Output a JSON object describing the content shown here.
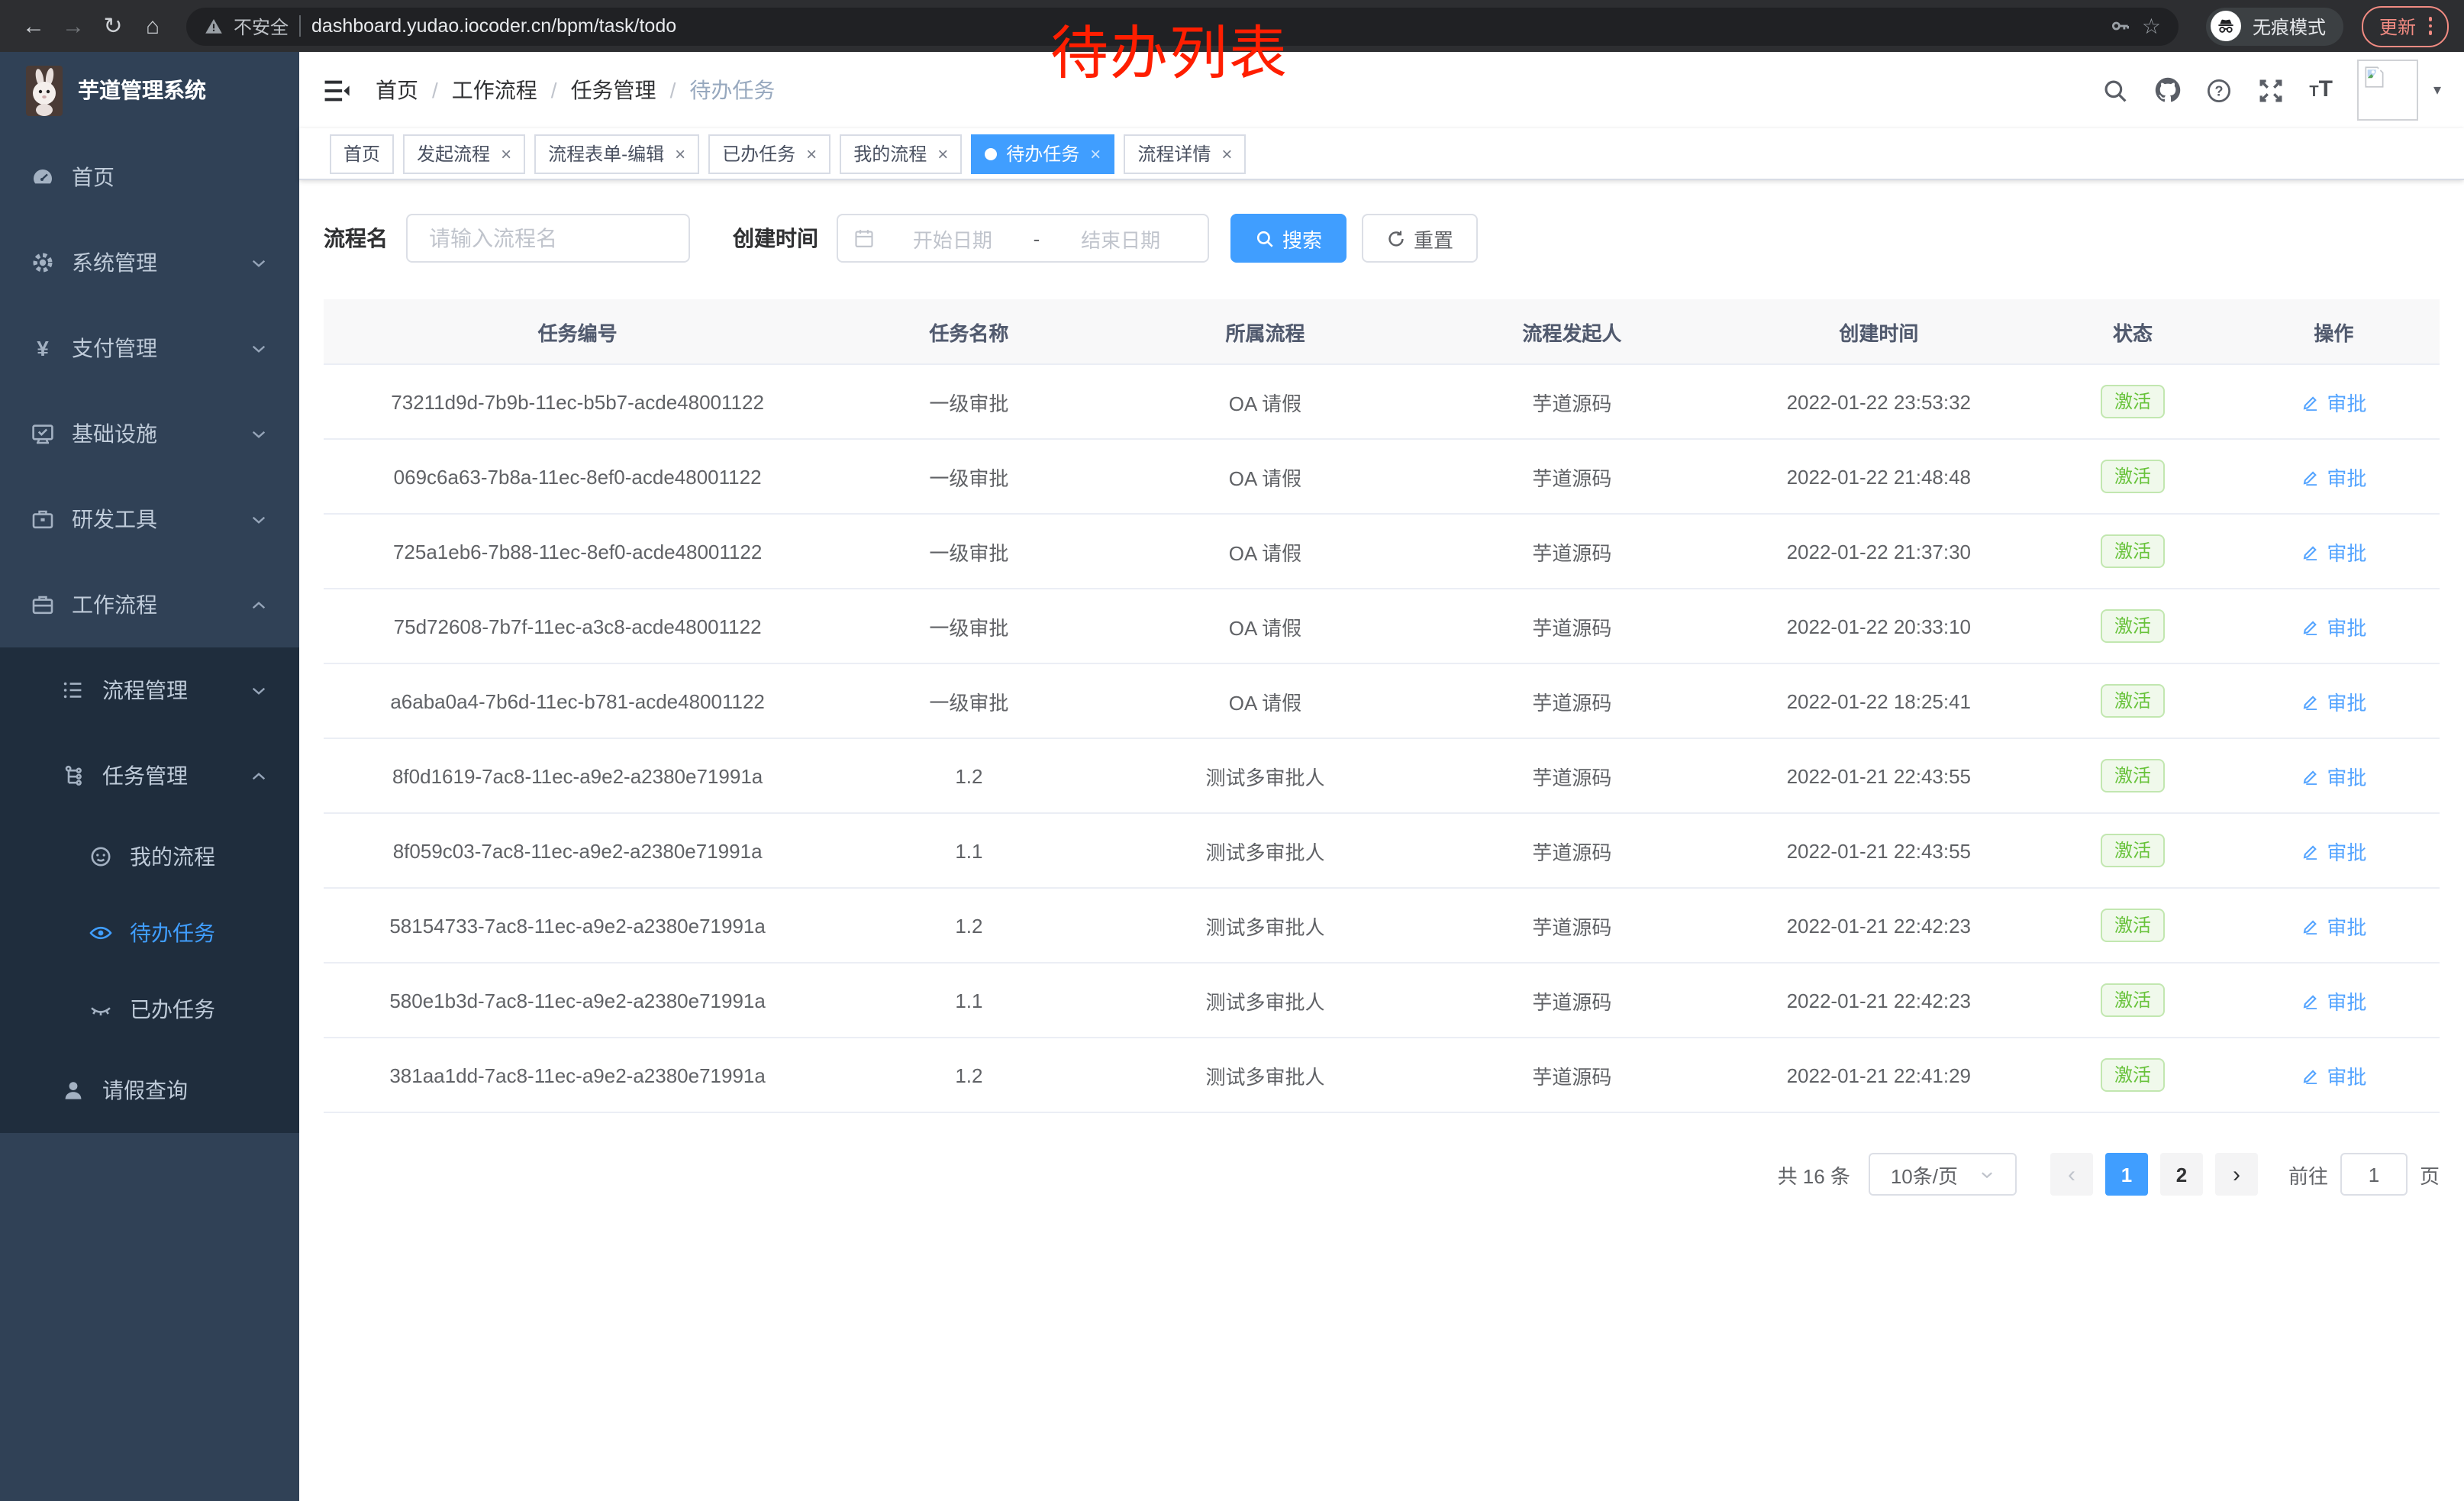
{
  "browser": {
    "security_label": "不安全",
    "url": "dashboard.yudao.iocoder.cn/bpm/task/todo",
    "incognito_label": "无痕模式",
    "update_label": "更新"
  },
  "annotation": "待办列表",
  "sidebar": {
    "app_title": "芋道管理系统",
    "items": [
      {
        "label": "首页",
        "icon": "dashboard-icon",
        "level": 1,
        "chevron": "",
        "dark": false,
        "active": false
      },
      {
        "label": "系统管理",
        "icon": "gear-icon",
        "level": 1,
        "chevron": "down",
        "dark": false,
        "active": false
      },
      {
        "label": "支付管理",
        "icon": "yen-icon",
        "level": 1,
        "chevron": "down",
        "dark": false,
        "active": false
      },
      {
        "label": "基础设施",
        "icon": "monitor-icon",
        "level": 1,
        "chevron": "down",
        "dark": false,
        "active": false
      },
      {
        "label": "研发工具",
        "icon": "toolbox-icon",
        "level": 1,
        "chevron": "down",
        "dark": false,
        "active": false
      },
      {
        "label": "工作流程",
        "icon": "briefcase-icon",
        "level": 1,
        "chevron": "up",
        "dark": false,
        "active": false
      },
      {
        "label": "流程管理",
        "icon": "list-icon",
        "level": 2,
        "chevron": "down",
        "dark": true,
        "active": false
      },
      {
        "label": "任务管理",
        "icon": "tree-icon",
        "level": 2,
        "chevron": "up",
        "dark": true,
        "active": false
      },
      {
        "label": "我的流程",
        "icon": "face-icon",
        "level": 3,
        "chevron": "",
        "dark": true,
        "active": false
      },
      {
        "label": "待办任务",
        "icon": "eye-icon",
        "level": 3,
        "chevron": "",
        "dark": true,
        "active": true
      },
      {
        "label": "已办任务",
        "icon": "eye-closed-icon",
        "level": 3,
        "chevron": "",
        "dark": true,
        "active": false
      },
      {
        "label": "请假查询",
        "icon": "user-icon",
        "level": 2,
        "chevron": "",
        "dark": true,
        "active": false
      }
    ]
  },
  "header": {
    "breadcrumb": [
      "首页",
      "工作流程",
      "任务管理",
      "待办任务"
    ]
  },
  "tabs": [
    {
      "label": "首页",
      "closable": false,
      "active": false
    },
    {
      "label": "发起流程",
      "closable": true,
      "active": false
    },
    {
      "label": "流程表单-编辑",
      "closable": true,
      "active": false
    },
    {
      "label": "已办任务",
      "closable": true,
      "active": false
    },
    {
      "label": "我的流程",
      "closable": true,
      "active": false
    },
    {
      "label": "待办任务",
      "closable": true,
      "active": true
    },
    {
      "label": "流程详情",
      "closable": true,
      "active": false
    }
  ],
  "filters": {
    "name_label": "流程名",
    "name_placeholder": "请输入流程名",
    "time_label": "创建时间",
    "start_placeholder": "开始日期",
    "range_separator": "-",
    "end_placeholder": "结束日期",
    "search_label": "搜索",
    "reset_label": "重置"
  },
  "table": {
    "columns": [
      "任务编号",
      "任务名称",
      "所属流程",
      "流程发起人",
      "创建时间",
      "状态",
      "操作"
    ],
    "col_widths": [
      "24%",
      "13%",
      "15%",
      "14%",
      "15%",
      "9%",
      "10%"
    ],
    "rows": [
      {
        "id": "73211d9d-7b9b-11ec-b5b7-acde48001122",
        "name": "一级审批",
        "process": "OA 请假",
        "starter": "芋道源码",
        "created": "2022-01-22 23:53:32",
        "status": "激活",
        "action": "审批"
      },
      {
        "id": "069c6a63-7b8a-11ec-8ef0-acde48001122",
        "name": "一级审批",
        "process": "OA 请假",
        "starter": "芋道源码",
        "created": "2022-01-22 21:48:48",
        "status": "激活",
        "action": "审批"
      },
      {
        "id": "725a1eb6-7b88-11ec-8ef0-acde48001122",
        "name": "一级审批",
        "process": "OA 请假",
        "starter": "芋道源码",
        "created": "2022-01-22 21:37:30",
        "status": "激活",
        "action": "审批"
      },
      {
        "id": "75d72608-7b7f-11ec-a3c8-acde48001122",
        "name": "一级审批",
        "process": "OA 请假",
        "starter": "芋道源码",
        "created": "2022-01-22 20:33:10",
        "status": "激活",
        "action": "审批"
      },
      {
        "id": "a6aba0a4-7b6d-11ec-b781-acde48001122",
        "name": "一级审批",
        "process": "OA 请假",
        "starter": "芋道源码",
        "created": "2022-01-22 18:25:41",
        "status": "激活",
        "action": "审批"
      },
      {
        "id": "8f0d1619-7ac8-11ec-a9e2-a2380e71991a",
        "name": "1.2",
        "process": "测试多审批人",
        "starter": "芋道源码",
        "created": "2022-01-21 22:43:55",
        "status": "激活",
        "action": "审批"
      },
      {
        "id": "8f059c03-7ac8-11ec-a9e2-a2380e71991a",
        "name": "1.1",
        "process": "测试多审批人",
        "starter": "芋道源码",
        "created": "2022-01-21 22:43:55",
        "status": "激活",
        "action": "审批"
      },
      {
        "id": "58154733-7ac8-11ec-a9e2-a2380e71991a",
        "name": "1.2",
        "process": "测试多审批人",
        "starter": "芋道源码",
        "created": "2022-01-21 22:42:23",
        "status": "激活",
        "action": "审批"
      },
      {
        "id": "580e1b3d-7ac8-11ec-a9e2-a2380e71991a",
        "name": "1.1",
        "process": "测试多审批人",
        "starter": "芋道源码",
        "created": "2022-01-21 22:42:23",
        "status": "激活",
        "action": "审批"
      },
      {
        "id": "381aa1dd-7ac8-11ec-a9e2-a2380e71991a",
        "name": "1.2",
        "process": "测试多审批人",
        "starter": "芋道源码",
        "created": "2022-01-21 22:41:29",
        "status": "激活",
        "action": "审批"
      }
    ]
  },
  "pagination": {
    "total": "共 16 条",
    "page_size": "10条/页",
    "pages": [
      "1",
      "2"
    ],
    "active_page": "1",
    "goto_label": "前往",
    "goto_value": "1",
    "page_unit": "页"
  },
  "colors": {
    "primary": "#409EFF",
    "success": "#67C23A",
    "annotation_red": "#FF1E00",
    "sidebar_bg": "#304156",
    "sidebar_submenu_bg": "#1F2D3D"
  }
}
